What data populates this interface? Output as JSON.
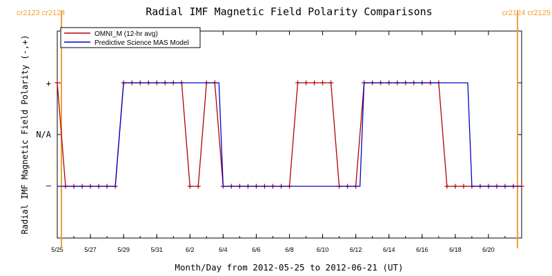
{
  "chart_data": {
    "type": "line",
    "title": "Radial IMF Magnetic Field Polarity Comparisons",
    "xlabel": "Month/Day from 2012-05-25 to 2012-06-21 (UT)",
    "ylabel": "Radial IMF Magnetic Field Polarity (-,+)",
    "x_range": [
      "2012-05-25",
      "2012-06-21"
    ],
    "x_ticks": [
      {
        "date": "2012-05-25",
        "label": "5/25"
      },
      {
        "date": "2012-05-27",
        "label": "5/27"
      },
      {
        "date": "2012-05-29",
        "label": "5/29"
      },
      {
        "date": "2012-05-31",
        "label": "5/31"
      },
      {
        "date": "2012-06-02",
        "label": "6/2"
      },
      {
        "date": "2012-06-04",
        "label": "6/4"
      },
      {
        "date": "2012-06-06",
        "label": "6/6"
      },
      {
        "date": "2012-06-08",
        "label": "6/8"
      },
      {
        "date": "2012-06-10",
        "label": "6/10"
      },
      {
        "date": "2012-06-12",
        "label": "6/12"
      },
      {
        "date": "2012-06-14",
        "label": "6/14"
      },
      {
        "date": "2012-06-16",
        "label": "6/16"
      },
      {
        "date": "2012-06-18",
        "label": "6/18"
      },
      {
        "date": "2012-06-20",
        "label": "6/20"
      }
    ],
    "y_categories": [
      "-",
      "N/A",
      "+"
    ],
    "y_tick_labels": {
      "plus": "+",
      "na": "N/A",
      "minus": "–"
    },
    "carrington_markers": [
      {
        "date": "2012-05-25 06:00",
        "label": "cr2123 cr2124",
        "position": "top-left"
      },
      {
        "date": "2012-06-21 18:00",
        "label": "cr2124 cr2125",
        "position": "top-right"
      }
    ],
    "legend": {
      "placement": "top-left"
    },
    "series": [
      {
        "name": "OMNI_M (12-hr avg)",
        "color": "#b00000",
        "markers": "plus",
        "points": [
          [
            "2012-05-25 00:00",
            "+"
          ],
          [
            "2012-05-25 12:00",
            "-"
          ],
          [
            "2012-05-26 00:00",
            "-"
          ],
          [
            "2012-05-26 12:00",
            "-"
          ],
          [
            "2012-05-27 00:00",
            "-"
          ],
          [
            "2012-05-27 12:00",
            "-"
          ],
          [
            "2012-05-28 00:00",
            "-"
          ],
          [
            "2012-05-28 12:00",
            "-"
          ],
          [
            "2012-05-29 00:00",
            "+"
          ],
          [
            "2012-05-29 12:00",
            "+"
          ],
          [
            "2012-05-30 00:00",
            "+"
          ],
          [
            "2012-05-30 12:00",
            "+"
          ],
          [
            "2012-05-31 00:00",
            "+"
          ],
          [
            "2012-05-31 12:00",
            "+"
          ],
          [
            "2012-06-01 00:00",
            "+"
          ],
          [
            "2012-06-01 12:00",
            "+"
          ],
          [
            "2012-06-02 00:00",
            "-"
          ],
          [
            "2012-06-02 12:00",
            "-"
          ],
          [
            "2012-06-03 00:00",
            "+"
          ],
          [
            "2012-06-03 12:00",
            "+"
          ],
          [
            "2012-06-04 00:00",
            "-"
          ],
          [
            "2012-06-04 12:00",
            "-"
          ],
          [
            "2012-06-05 00:00",
            "-"
          ],
          [
            "2012-06-05 12:00",
            "-"
          ],
          [
            "2012-06-06 00:00",
            "-"
          ],
          [
            "2012-06-06 12:00",
            "-"
          ],
          [
            "2012-06-07 00:00",
            "-"
          ],
          [
            "2012-06-07 12:00",
            "-"
          ],
          [
            "2012-06-08 00:00",
            "-"
          ],
          [
            "2012-06-08 12:00",
            "+"
          ],
          [
            "2012-06-09 00:00",
            "+"
          ],
          [
            "2012-06-09 12:00",
            "+"
          ],
          [
            "2012-06-10 00:00",
            "+"
          ],
          [
            "2012-06-10 12:00",
            "+"
          ],
          [
            "2012-06-11 00:00",
            "-"
          ],
          [
            "2012-06-11 12:00",
            "-"
          ],
          [
            "2012-06-12 00:00",
            "-"
          ],
          [
            "2012-06-12 12:00",
            "+"
          ],
          [
            "2012-06-13 00:00",
            "+"
          ],
          [
            "2012-06-13 12:00",
            "+"
          ],
          [
            "2012-06-14 00:00",
            "+"
          ],
          [
            "2012-06-14 12:00",
            "+"
          ],
          [
            "2012-06-15 00:00",
            "+"
          ],
          [
            "2012-06-15 12:00",
            "+"
          ],
          [
            "2012-06-16 00:00",
            "+"
          ],
          [
            "2012-06-16 12:00",
            "+"
          ],
          [
            "2012-06-17 00:00",
            "+"
          ],
          [
            "2012-06-17 12:00",
            "-"
          ],
          [
            "2012-06-18 00:00",
            "-"
          ],
          [
            "2012-06-18 12:00",
            "-"
          ],
          [
            "2012-06-19 00:00",
            "-"
          ],
          [
            "2012-06-19 12:00",
            "-"
          ],
          [
            "2012-06-20 00:00",
            "-"
          ],
          [
            "2012-06-20 12:00",
            "-"
          ],
          [
            "2012-06-21 00:00",
            "-"
          ],
          [
            "2012-06-21 12:00",
            "-"
          ],
          [
            "2012-06-22 00:00",
            "-"
          ]
        ]
      },
      {
        "name": "Predictive Science MAS Model",
        "color": "#0000c8",
        "markers": "none",
        "points": [
          [
            "2012-05-25 00:00",
            "-"
          ],
          [
            "2012-05-28 12:00",
            "-"
          ],
          [
            "2012-05-29 00:00",
            "+"
          ],
          [
            "2012-06-03 18:00",
            "+"
          ],
          [
            "2012-06-04 00:00",
            "-"
          ],
          [
            "2012-06-12 06:00",
            "-"
          ],
          [
            "2012-06-12 12:00",
            "+"
          ],
          [
            "2012-06-18 18:00",
            "+"
          ],
          [
            "2012-06-19 00:00",
            "-"
          ],
          [
            "2012-06-22 00:00",
            "-"
          ]
        ]
      }
    ],
    "colors": {
      "title": "#000000",
      "axis": "#000000",
      "carrington": "#f0a030"
    }
  }
}
